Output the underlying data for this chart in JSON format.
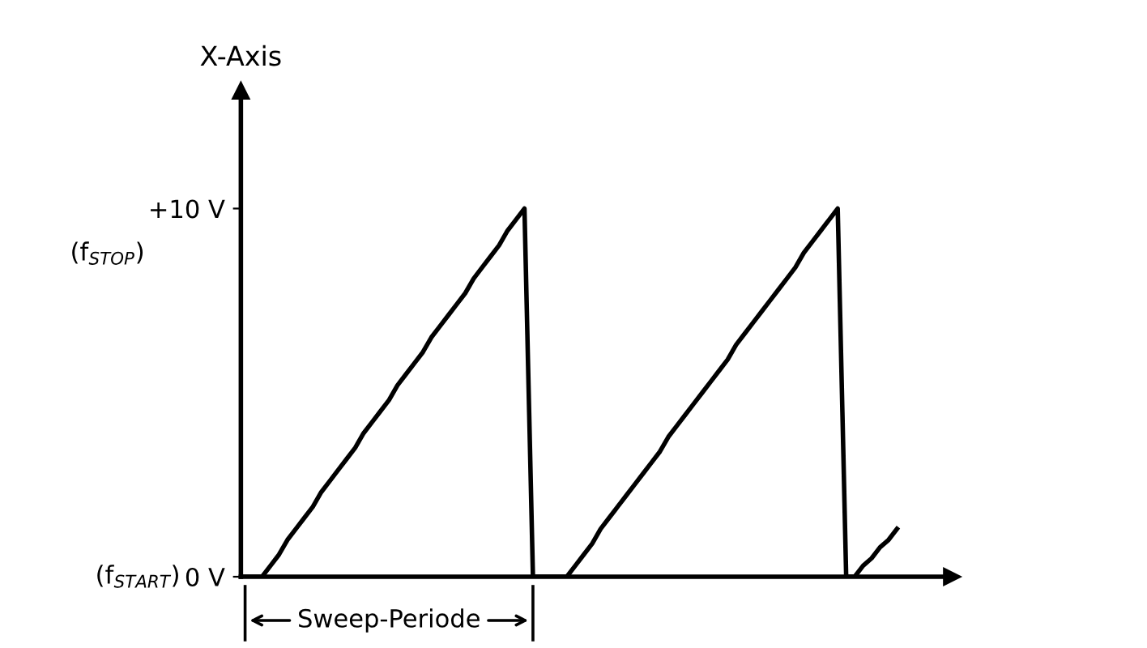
{
  "chart_data": {
    "type": "line",
    "ylabel": "X-Axis",
    "categories": [
      null,
      null,
      null,
      null,
      null,
      null,
      null,
      null,
      null,
      null,
      null,
      null,
      null,
      null,
      null,
      null,
      null,
      null,
      null,
      null,
      null,
      null,
      null,
      null,
      null,
      null,
      null,
      null,
      null,
      null,
      null,
      null,
      null,
      null,
      null,
      null,
      null,
      null,
      null,
      null,
      null,
      null,
      null,
      null,
      null,
      null,
      null,
      null,
      null,
      null,
      null,
      null,
      null,
      null,
      null,
      null,
      null,
      null,
      null,
      null,
      null,
      null,
      null,
      null,
      null,
      null,
      null,
      null,
      null,
      null,
      null,
      null,
      null,
      null,
      null,
      null,
      null,
      null,
      null,
      null,
      null,
      null,
      null,
      null
    ],
    "series": [
      {
        "color": "#000000",
        "values": [
          0,
          0,
          0,
          0.3,
          0.6,
          1.0,
          1.3,
          1.6,
          1.9,
          2.3,
          2.6,
          2.9,
          3.2,
          3.5,
          3.9,
          4.2,
          4.5,
          4.8,
          5.2,
          5.5,
          5.8,
          6.1,
          6.5,
          6.8,
          7.1,
          7.4,
          7.7,
          8.1,
          8.4,
          8.7,
          9.0,
          9.4,
          9.7,
          10,
          0,
          0,
          0,
          0,
          0,
          0.3,
          0.6,
          0.9,
          1.3,
          1.6,
          1.9,
          2.2,
          2.5,
          2.8,
          3.1,
          3.4,
          3.8,
          4.1,
          4.4,
          4.7,
          5.0,
          5.3,
          5.6,
          5.9,
          6.3,
          6.6,
          6.9,
          7.2,
          7.5,
          7.8,
          8.1,
          8.4,
          8.8,
          9.1,
          9.4,
          9.7,
          10,
          0,
          0,
          0.3,
          0.5,
          0.8,
          1.0,
          1.3,
          null,
          null,
          null,
          null,
          null,
          null
        ]
      }
    ],
    "ylim": [
      0,
      13.2
    ],
    "yticks": [
      {
        "value": 0,
        "label": "0 V"
      },
      {
        "value": 10,
        "label": "+10 V"
      }
    ],
    "tick_labels": "y",
    "grid": false,
    "legend": false,
    "marker": "none",
    "line_style": "solid",
    "annotations": [
      "(f$_{STOP}$)",
      "(f$_{START}$)",
      "Sweep-Periode"
    ]
  }
}
